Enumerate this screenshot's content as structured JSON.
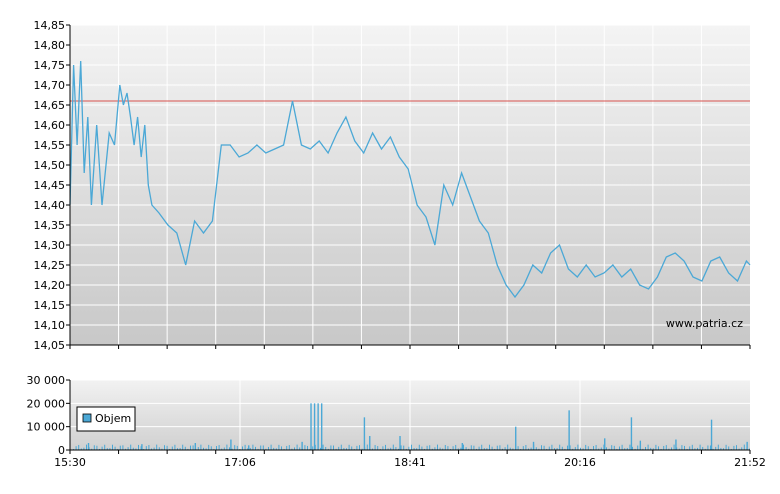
{
  "chart_data": [
    {
      "type": "line",
      "title": "",
      "xlabel": "",
      "ylabel": "",
      "ylim": [
        14.05,
        14.85
      ],
      "yticks": [
        "14,85",
        "14,80",
        "14,75",
        "14,70",
        "14,65",
        "14,60",
        "14,55",
        "14,50",
        "14,45",
        "14,40",
        "14,35",
        "14,30",
        "14,25",
        "14,20",
        "14,15",
        "14,10",
        "14,05"
      ],
      "xticks": [
        "15:30",
        "17:06",
        "18:41",
        "20:16",
        "21:52"
      ],
      "xlim": [
        "15:30",
        "21:52"
      ],
      "reference_line": {
        "value": 14.66,
        "color": "#d9534f"
      },
      "series": [
        {
          "color": "#4ba8d6",
          "x": [
            "15:30",
            "15:32",
            "15:34",
            "15:36",
            "15:38",
            "15:40",
            "15:42",
            "15:45",
            "15:48",
            "15:52",
            "15:55",
            "15:58",
            "16:00",
            "16:02",
            "16:04",
            "16:06",
            "16:08",
            "16:10",
            "16:12",
            "16:14",
            "16:16",
            "16:20",
            "16:25",
            "16:30",
            "16:35",
            "16:40",
            "16:45",
            "16:50",
            "16:55",
            "17:00",
            "17:05",
            "17:10",
            "17:15",
            "17:20",
            "17:25",
            "17:30",
            "17:35",
            "17:40",
            "17:45",
            "17:50",
            "17:55",
            "18:00",
            "18:05",
            "18:10",
            "18:15",
            "18:20",
            "18:25",
            "18:30",
            "18:35",
            "18:40",
            "18:45",
            "18:50",
            "18:55",
            "19:00",
            "19:05",
            "19:10",
            "19:15",
            "19:20",
            "19:25",
            "19:30",
            "19:35",
            "19:40",
            "19:45",
            "19:50",
            "19:55",
            "20:00",
            "20:05",
            "20:10",
            "20:15",
            "20:20",
            "20:25",
            "20:30",
            "20:35",
            "20:40",
            "20:45",
            "20:50",
            "20:55",
            "21:00",
            "21:05",
            "21:10",
            "21:15",
            "21:20",
            "21:25",
            "21:30",
            "21:35",
            "21:40",
            "21:45",
            "21:50",
            "21:52"
          ],
          "values": [
            14.4,
            14.75,
            14.55,
            14.76,
            14.48,
            14.62,
            14.4,
            14.6,
            14.4,
            14.58,
            14.55,
            14.7,
            14.65,
            14.68,
            14.62,
            14.55,
            14.62,
            14.52,
            14.6,
            14.45,
            14.4,
            14.38,
            14.35,
            14.33,
            14.25,
            14.36,
            14.33,
            14.36,
            14.55,
            14.55,
            14.52,
            14.53,
            14.55,
            14.53,
            14.54,
            14.55,
            14.66,
            14.55,
            14.54,
            14.56,
            14.53,
            14.58,
            14.62,
            14.56,
            14.53,
            14.58,
            14.54,
            14.57,
            14.52,
            14.49,
            14.4,
            14.37,
            14.3,
            14.45,
            14.4,
            14.48,
            14.42,
            14.36,
            14.33,
            14.25,
            14.2,
            14.17,
            14.2,
            14.25,
            14.23,
            14.28,
            14.3,
            14.24,
            14.22,
            14.25,
            14.22,
            14.23,
            14.25,
            14.22,
            14.24,
            14.2,
            14.19,
            14.22,
            14.27,
            14.28,
            14.26,
            14.22,
            14.21,
            14.26,
            14.27,
            14.23,
            14.21,
            14.26,
            14.25
          ]
        }
      ],
      "watermark": "www.patria.cz"
    },
    {
      "type": "bar",
      "title": "",
      "ylim": [
        0,
        30000
      ],
      "yticks": [
        "30 000",
        "20 000",
        "10 000",
        "0"
      ],
      "xticks": [
        "15:30",
        "17:06",
        "18:41",
        "20:16",
        "21:52"
      ],
      "legend": {
        "label": "Objem",
        "placement": "left",
        "color": "#4ba8d6"
      },
      "series": [
        {
          "name": "Objem",
          "color": "#4ba8d6",
          "x": [
            "15:40",
            "16:10",
            "16:40",
            "17:00",
            "17:10",
            "17:40",
            "17:45",
            "17:47",
            "17:49",
            "17:51",
            "18:15",
            "18:18",
            "18:35",
            "19:10",
            "19:40",
            "19:50",
            "20:10",
            "20:30",
            "20:45",
            "20:50",
            "21:10",
            "21:30",
            "21:50"
          ],
          "values": [
            3000,
            2500,
            3000,
            4500,
            2000,
            3500,
            20000,
            20000,
            20000,
            20000,
            14000,
            6000,
            6000,
            3000,
            10000,
            3500,
            17000,
            5000,
            14000,
            4000,
            4500,
            13000,
            3500
          ]
        }
      ]
    }
  ]
}
